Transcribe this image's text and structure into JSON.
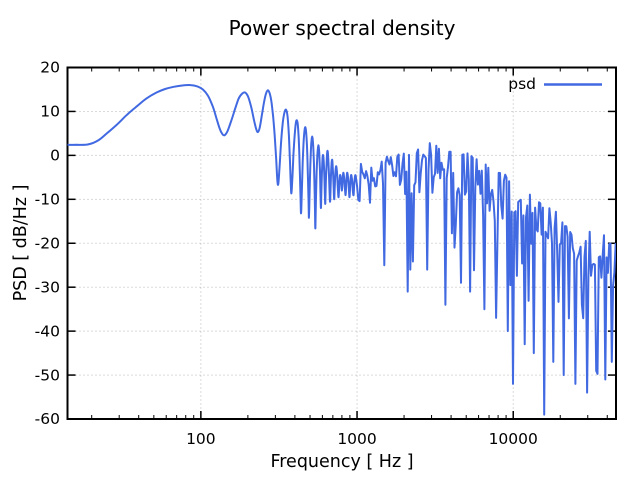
{
  "colors": {
    "line": "#4169e1",
    "grid": "#b5b5b5",
    "border": "#000000",
    "text": "#000000"
  },
  "chart_data": {
    "type": "line",
    "title": "Power spectral density",
    "xlabel": "Frequency [ Hz ]",
    "ylabel": "PSD [ dB/Hz ]",
    "xscale": "log",
    "xlim": [
      14,
      45500
    ],
    "ylim": [
      -60,
      20
    ],
    "xticks_major": [
      100,
      1000,
      10000
    ],
    "xtick_labels": [
      "100",
      "1000",
      "10000"
    ],
    "yticks": [
      20,
      10,
      0,
      -10,
      -20,
      -30,
      -40,
      -50,
      -60
    ],
    "grid": {
      "style": "dotted",
      "on": true
    },
    "legend_position": "top-right",
    "series": [
      {
        "name": "psd",
        "color": "#4169e1",
        "smooth_points": [
          [
            14,
            2.4
          ],
          [
            16,
            2.4
          ],
          [
            19,
            2.5
          ],
          [
            22,
            3.4
          ],
          [
            25,
            5.0
          ],
          [
            29,
            7.0
          ],
          [
            34,
            9.4
          ],
          [
            39,
            11.2
          ],
          [
            45,
            13.0
          ],
          [
            52,
            14.3
          ],
          [
            59,
            15.1
          ],
          [
            67,
            15.6
          ],
          [
            76,
            15.9
          ],
          [
            86,
            16.0
          ],
          [
            95,
            15.7
          ],
          [
            103,
            15.0
          ],
          [
            111,
            13.6
          ],
          [
            119,
            11.2
          ],
          [
            126,
            8.4
          ],
          [
            132,
            6.1
          ],
          [
            137,
            4.9
          ],
          [
            142,
            4.6
          ],
          [
            148,
            5.5
          ],
          [
            156,
            7.7
          ],
          [
            165,
            10.4
          ],
          [
            174,
            12.8
          ],
          [
            183,
            14.0
          ],
          [
            192,
            14.3
          ],
          [
            201,
            13.3
          ],
          [
            210,
            11.0
          ],
          [
            219,
            8.0
          ],
          [
            226,
            6.0
          ],
          [
            232,
            5.3
          ],
          [
            238,
            6.3
          ],
          [
            245,
            8.8
          ],
          [
            253,
            11.8
          ],
          [
            261,
            14.0
          ],
          [
            269,
            14.8
          ],
          [
            278,
            13.7
          ],
          [
            286,
            11.0
          ],
          [
            295,
            6.0
          ],
          [
            303,
            -0.5
          ],
          [
            309,
            -5.8
          ],
          [
            313,
            -6.5
          ],
          [
            318,
            -3.5
          ],
          [
            325,
            2.0
          ],
          [
            333,
            6.8
          ],
          [
            342,
            9.6
          ],
          [
            351,
            10.4
          ],
          [
            359,
            8.8
          ],
          [
            366,
            4.5
          ],
          [
            372,
            -1.5
          ],
          [
            377,
            -7.0
          ],
          [
            380,
            -8.6
          ],
          [
            385,
            -5.5
          ],
          [
            392,
            0.5
          ],
          [
            400,
            5.2
          ],
          [
            408,
            7.8
          ],
          [
            416,
            7.4
          ],
          [
            423,
            4.0
          ],
          [
            429,
            -2.0
          ],
          [
            434,
            -8.5
          ],
          [
            438,
            -13.2
          ],
          [
            443,
            -8.5
          ],
          [
            449,
            -1.5
          ],
          [
            456,
            3.8
          ],
          [
            464,
            6.3
          ],
          [
            471,
            5.6
          ],
          [
            478,
            2.0
          ],
          [
            484,
            -4.0
          ],
          [
            489,
            -10.0
          ],
          [
            492,
            -14.2
          ],
          [
            496,
            -9.5
          ],
          [
            502,
            -2.5
          ],
          [
            509,
            2.5
          ],
          [
            516,
            4.3
          ],
          [
            523,
            2.5
          ],
          [
            529,
            -1.5
          ],
          [
            534,
            -7.0
          ],
          [
            538,
            -12.5
          ],
          [
            541,
            -16.6
          ],
          [
            545,
            -10.5
          ],
          [
            551,
            -4.0
          ],
          [
            558,
            0.5
          ],
          [
            565,
            2.3
          ],
          [
            572,
            0.8
          ],
          [
            578,
            -3.0
          ],
          [
            583,
            -8.0
          ],
          [
            587,
            -12.0
          ],
          [
            591,
            -8.0
          ],
          [
            597,
            -3.0
          ],
          [
            604,
            0.0
          ],
          [
            611,
            -1.0
          ],
          [
            617,
            -4.5
          ],
          [
            622,
            -8.5
          ],
          [
            626,
            -11.0
          ],
          [
            631,
            -6.5
          ],
          [
            638,
            -2.0
          ],
          [
            646,
            1.0
          ],
          [
            654,
            -0.5
          ],
          [
            661,
            -4.5
          ],
          [
            667,
            -8.5
          ],
          [
            672,
            -10.5
          ],
          [
            678,
            -6.5
          ],
          [
            685,
            -2.5
          ],
          [
            693,
            -1.0
          ],
          [
            701,
            -3.5
          ],
          [
            708,
            -7.0
          ],
          [
            714,
            -10.0
          ],
          [
            720,
            -7.0
          ],
          [
            728,
            -3.5
          ],
          [
            737,
            -2.5
          ],
          [
            746,
            -4.5
          ],
          [
            755,
            -8.0
          ],
          [
            762,
            -9.5
          ],
          [
            770,
            -6.5
          ],
          [
            779,
            -4.5
          ],
          [
            789,
            -5.5
          ],
          [
            799,
            -8.0
          ],
          [
            807,
            -6.0
          ],
          [
            816,
            -4.0
          ],
          [
            826,
            -5.0
          ],
          [
            836,
            -7.5
          ],
          [
            845,
            -9.0
          ],
          [
            854,
            -6.0
          ],
          [
            864,
            -4.0
          ],
          [
            875,
            -5.0
          ],
          [
            886,
            -7.5
          ],
          [
            895,
            -9.5
          ],
          [
            905,
            -6.5
          ],
          [
            916,
            -4.5
          ],
          [
            928,
            -5.5
          ],
          [
            940,
            -8.0
          ],
          [
            950,
            -9.0
          ],
          [
            962,
            -6.0
          ],
          [
            975,
            -4.5
          ],
          [
            988,
            -5.5
          ]
        ],
        "noise_start_hz": 1000,
        "noise_envelope": [
          [
            1000,
            1,
            -4,
            -10,
            -20
          ],
          [
            1400,
            0,
            -4,
            -11,
            -26
          ],
          [
            2000,
            1.5,
            -4,
            -12,
            -30
          ],
          [
            2700,
            3,
            -3.5,
            -12,
            -27
          ],
          [
            3500,
            3.5,
            -3.5,
            -13,
            -33
          ],
          [
            4500,
            2.5,
            -4.5,
            -14,
            -30
          ],
          [
            6000,
            0,
            -7,
            -17,
            -33
          ],
          [
            8000,
            -3,
            -10,
            -20,
            -38
          ],
          [
            11000,
            -6.5,
            -13,
            -24,
            -42
          ],
          [
            15000,
            -10,
            -16,
            -27,
            -46
          ],
          [
            20000,
            -13,
            -19,
            -30,
            -48
          ],
          [
            28000,
            -16,
            -22,
            -33,
            -50
          ],
          [
            38000,
            -18,
            -24.5,
            -36,
            -50
          ],
          [
            45500,
            -19,
            -26,
            -38,
            -50
          ]
        ],
        "deep_spikes": [
          [
            1500,
            -25
          ],
          [
            2100,
            -31
          ],
          [
            2800,
            -26
          ],
          [
            3700,
            -34
          ],
          [
            4600,
            -29
          ],
          [
            5300,
            -31
          ],
          [
            6500,
            -35
          ],
          [
            7700,
            -37
          ],
          [
            9200,
            -40
          ],
          [
            10000,
            -52
          ],
          [
            11800,
            -43
          ],
          [
            13500,
            -45
          ],
          [
            15650,
            -59
          ],
          [
            18000,
            -47
          ],
          [
            21000,
            -50
          ],
          [
            25000,
            -52
          ],
          [
            30000,
            -54
          ],
          [
            34000,
            -49
          ],
          [
            39000,
            -51
          ],
          [
            43000,
            -47
          ]
        ],
        "noise_seed": 13,
        "spike_prob": 0.1,
        "top_prob": 0.16
      }
    ]
  }
}
